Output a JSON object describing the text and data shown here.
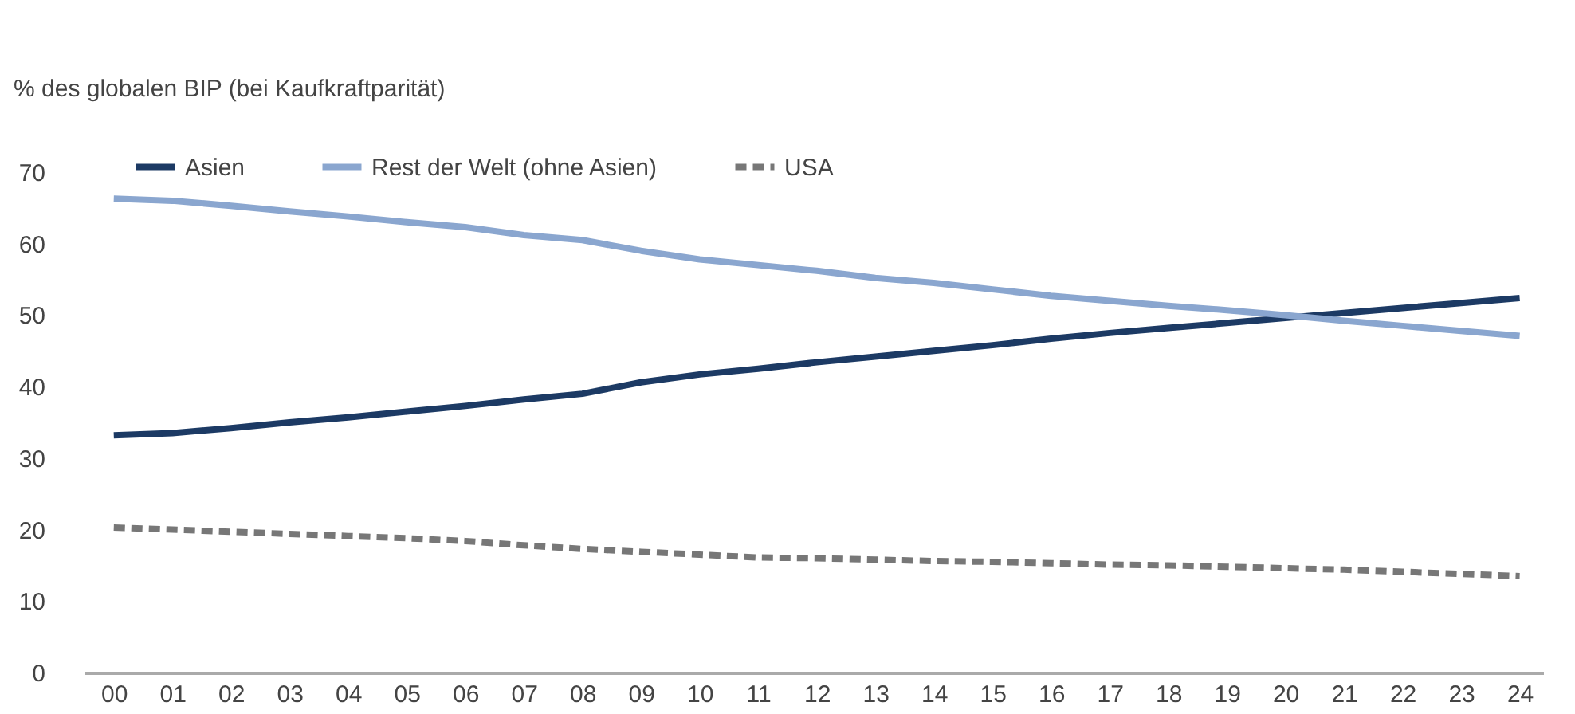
{
  "chart_data": {
    "type": "line",
    "ylabel": "% des globalen BIP (bei Kaufkraftparität)",
    "categories": [
      "00",
      "01",
      "02",
      "03",
      "04",
      "05",
      "06",
      "07",
      "08",
      "09",
      "10",
      "11",
      "12",
      "13",
      "14",
      "15",
      "16",
      "17",
      "18",
      "19",
      "20",
      "21",
      "22",
      "23",
      "24"
    ],
    "series": [
      {
        "name": "Asien",
        "color": "#1c3a64",
        "line_style": "solid",
        "values": [
          33.2,
          33.5,
          34.2,
          35.0,
          35.7,
          36.5,
          37.3,
          38.2,
          39.0,
          40.6,
          41.7,
          42.5,
          43.4,
          44.2,
          45.0,
          45.8,
          46.7,
          47.5,
          48.2,
          48.9,
          49.6,
          50.3,
          51.0,
          51.7,
          52.4
        ]
      },
      {
        "name": "Rest der Welt (ohne Asien)",
        "color": "#8aa6cf",
        "line_style": "solid",
        "values": [
          66.3,
          66.0,
          65.3,
          64.5,
          63.8,
          63.0,
          62.3,
          61.2,
          60.5,
          59.0,
          57.8,
          57.0,
          56.2,
          55.2,
          54.5,
          53.6,
          52.7,
          52.0,
          51.3,
          50.7,
          50.0,
          49.2,
          48.5,
          47.8,
          47.1
        ]
      },
      {
        "name": "USA",
        "color": "#777777",
        "line_style": "dashed",
        "values": [
          20.3,
          20.0,
          19.7,
          19.4,
          19.1,
          18.8,
          18.4,
          17.8,
          17.3,
          16.9,
          16.5,
          16.1,
          16.0,
          15.8,
          15.6,
          15.5,
          15.3,
          15.1,
          15.0,
          14.8,
          14.6,
          14.4,
          14.1,
          13.8,
          13.5
        ]
      }
    ],
    "ylim": [
      0,
      70
    ],
    "yticks": [
      0,
      10,
      20,
      30,
      40,
      50,
      60,
      70
    ],
    "grid": false,
    "legend": "top left"
  }
}
